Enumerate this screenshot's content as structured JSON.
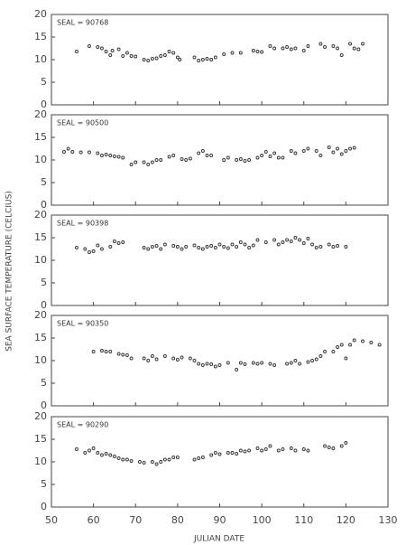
{
  "shared_axes": {
    "xlabel": "JULIAN DATE",
    "ylabel": "SEA SURFACE TEMPERATURE (CELCIUS)"
  },
  "chart_data": [
    {
      "type": "scatter",
      "annotation": "SEAL = 90768",
      "marker_color": "#333333",
      "xlim": [
        50,
        130
      ],
      "xticks": [
        50,
        60,
        70,
        80,
        90,
        100,
        110,
        120,
        130
      ],
      "ylim": [
        0,
        20
      ],
      "yticks": [
        0,
        5,
        10,
        15,
        20
      ],
      "show_xtick_labels": false,
      "x": [
        56,
        59,
        61,
        62,
        63,
        64,
        64.5,
        66,
        67,
        68,
        69,
        70,
        72,
        73,
        74,
        75,
        76,
        77,
        78,
        79,
        80,
        80.5,
        84,
        85,
        86,
        87,
        88,
        89,
        91,
        93,
        95,
        98,
        99,
        100,
        102,
        103,
        105,
        106,
        107,
        108,
        110,
        111,
        114,
        115,
        117,
        118,
        119,
        121,
        122,
        123,
        124
      ],
      "values": [
        11.8,
        13,
        12.8,
        12.5,
        11.8,
        11,
        12,
        12.3,
        10.8,
        11.5,
        10.8,
        10.7,
        10,
        9.8,
        10.2,
        10.3,
        10.8,
        11,
        11.8,
        11.5,
        10.5,
        10,
        10.5,
        9.8,
        10,
        10.2,
        10,
        10.5,
        11.2,
        11.5,
        11.5,
        12,
        11.8,
        11.7,
        13,
        12.5,
        12.5,
        12.8,
        12.3,
        12.5,
        12,
        13,
        13.5,
        12.8,
        13,
        12.5,
        11,
        13.5,
        12.5,
        12.3,
        13.5
      ]
    },
    {
      "type": "scatter",
      "annotation": "SEAL = 90500",
      "marker_color": "#333333",
      "xlim": [
        50,
        130
      ],
      "xticks": [
        50,
        60,
        70,
        80,
        90,
        100,
        110,
        120,
        130
      ],
      "ylim": [
        0,
        20
      ],
      "yticks": [
        0,
        5,
        10,
        15,
        20
      ],
      "show_xtick_labels": false,
      "x": [
        53,
        54,
        55,
        57,
        59,
        61,
        62,
        63,
        64,
        65,
        66,
        67,
        69,
        70,
        72,
        73,
        74,
        75,
        76,
        78,
        79,
        81,
        82,
        83,
        85,
        86,
        87,
        88,
        91,
        92,
        94,
        95,
        96,
        97,
        99,
        100,
        101,
        102,
        103,
        104,
        105,
        107,
        108,
        110,
        111,
        113,
        114,
        116,
        117,
        118,
        119,
        120,
        121,
        122
      ],
      "values": [
        11.8,
        12.5,
        11.8,
        11.7,
        11.7,
        11.5,
        11,
        11.2,
        11,
        10.8,
        10.7,
        10.5,
        9,
        9.5,
        9.5,
        9,
        9.5,
        10,
        10,
        10.7,
        11,
        10.2,
        10,
        10.3,
        11.5,
        12,
        11,
        11,
        10,
        10.5,
        10,
        10.2,
        9.8,
        10,
        10.5,
        11,
        11.8,
        10.8,
        11.5,
        10.5,
        10.5,
        12,
        11.5,
        12,
        12.5,
        12,
        11,
        12.8,
        11.7,
        12.5,
        11.3,
        12,
        12.5,
        12.7
      ]
    },
    {
      "type": "scatter",
      "annotation": "SEAL = 90398",
      "marker_color": "#333333",
      "xlim": [
        50,
        130
      ],
      "xticks": [
        50,
        60,
        70,
        80,
        90,
        100,
        110,
        120,
        130
      ],
      "ylim": [
        0,
        20
      ],
      "yticks": [
        0,
        5,
        10,
        15,
        20
      ],
      "show_xtick_labels": false,
      "x": [
        56,
        58,
        59,
        60,
        61,
        62,
        64,
        65,
        66,
        67,
        72,
        73,
        74,
        75,
        76,
        77,
        79,
        80,
        81,
        82,
        84,
        85,
        86,
        87,
        88,
        89,
        90,
        91,
        92,
        93,
        94,
        95,
        96,
        97,
        98,
        99,
        101,
        103,
        104,
        105,
        106,
        107,
        108,
        109,
        110,
        111,
        112,
        113,
        114,
        116,
        117,
        118,
        120
      ],
      "values": [
        12.8,
        12.5,
        11.8,
        12,
        13.3,
        12.5,
        13,
        14.2,
        13.8,
        14,
        12.8,
        12.5,
        13,
        13.2,
        12.5,
        13.5,
        13.2,
        13,
        12.5,
        13,
        13.3,
        12.8,
        12.5,
        13,
        13.2,
        12.8,
        13.5,
        13,
        12.7,
        13.5,
        13,
        14,
        13.5,
        12.8,
        13.3,
        14.5,
        14,
        14.5,
        13.5,
        14,
        14.5,
        14.2,
        15,
        14.5,
        13.8,
        14.8,
        13.5,
        12.8,
        13,
        13.5,
        13,
        13.2,
        13
      ]
    },
    {
      "type": "scatter",
      "annotation": "SEAL = 90350",
      "marker_color": "#333333",
      "xlim": [
        50,
        130
      ],
      "xticks": [
        50,
        60,
        70,
        80,
        90,
        100,
        110,
        120,
        130
      ],
      "ylim": [
        0,
        20
      ],
      "yticks": [
        0,
        5,
        10,
        15,
        20
      ],
      "show_xtick_labels": false,
      "x": [
        60,
        62,
        63,
        64,
        66,
        67,
        68,
        69,
        72,
        73,
        74,
        75,
        77,
        79,
        80,
        81,
        83,
        84,
        85,
        86,
        87,
        88,
        89,
        90,
        92,
        94,
        95,
        96,
        98,
        99,
        100,
        102,
        103,
        106,
        107,
        108,
        109,
        111,
        112,
        113,
        114,
        115,
        117,
        118,
        119,
        120,
        121,
        122,
        124,
        126,
        128
      ],
      "values": [
        12,
        12.2,
        12,
        12,
        11.5,
        11.3,
        11.2,
        10.5,
        10.5,
        10,
        11,
        10.3,
        11,
        10.5,
        10.2,
        10.7,
        10.5,
        10,
        9.3,
        9,
        9.3,
        9.2,
        8.7,
        9,
        9.5,
        8,
        9.5,
        9.2,
        9.5,
        9.3,
        9.5,
        9.3,
        9,
        9.3,
        9.5,
        10,
        9.3,
        9.7,
        10,
        10.3,
        11,
        12,
        12,
        13,
        13.5,
        10.5,
        13.5,
        14.5,
        14.3,
        14,
        13.5
      ]
    },
    {
      "type": "scatter",
      "annotation": "SEAL = 90290",
      "marker_color": "#333333",
      "xlim": [
        50,
        130
      ],
      "xticks": [
        50,
        60,
        70,
        80,
        90,
        100,
        110,
        120,
        130
      ],
      "ylim": [
        0,
        20
      ],
      "yticks": [
        0,
        5,
        10,
        15,
        20
      ],
      "show_xtick_labels": true,
      "x": [
        56,
        58,
        59,
        60,
        61,
        62,
        63,
        64,
        65,
        66,
        67,
        68,
        69,
        71,
        72,
        74,
        75,
        76,
        77,
        78,
        79,
        80,
        84,
        85,
        86,
        88,
        89,
        90,
        92,
        93,
        94,
        95,
        96,
        97,
        99,
        100,
        101,
        102,
        104,
        105,
        107,
        108,
        110,
        111,
        115,
        116,
        117,
        119,
        120
      ],
      "values": [
        12.8,
        12,
        12.5,
        13,
        12,
        11.5,
        11.8,
        11.5,
        11.2,
        10.8,
        10.5,
        10.5,
        10.2,
        10,
        9.8,
        10,
        9.5,
        10,
        10.5,
        10.5,
        11,
        11,
        10.5,
        10.8,
        11,
        11.5,
        12,
        11.7,
        12,
        12,
        11.8,
        12.5,
        12.3,
        12.5,
        13,
        12.5,
        12.8,
        13.5,
        12.5,
        12.8,
        13,
        12.5,
        12.8,
        12.5,
        13.5,
        13.2,
        13,
        13.5,
        14.2
      ]
    }
  ]
}
